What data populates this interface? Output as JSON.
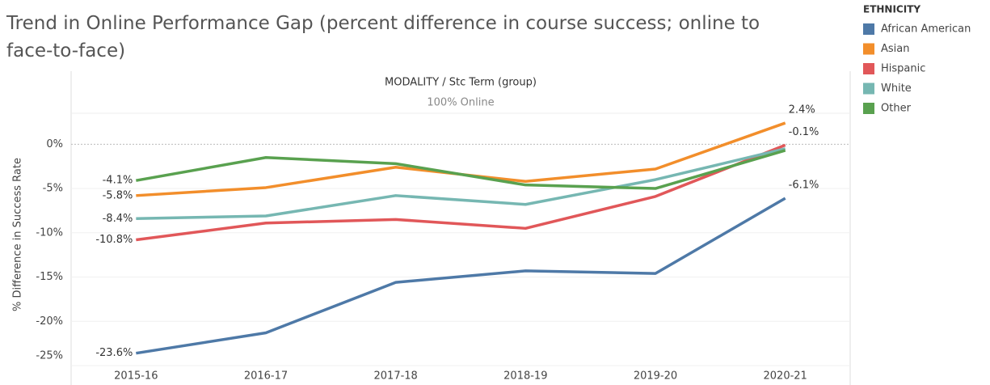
{
  "chart_data": {
    "type": "line",
    "title_lines": [
      "Trend in Online Performance Gap (percent difference in course success; online to",
      "face-to-face)"
    ],
    "header": "MODALITY / Stc Term (group)",
    "subheader": "100% Online",
    "ylabel": "% Difference in Success Rate",
    "legend_title": "ETHNICITY",
    "categories": [
      "2015-16",
      "2016-17",
      "2017-18",
      "2018-19",
      "2019-20",
      "2020-21"
    ],
    "series": [
      {
        "name": "African American",
        "color": "#4e79a7",
        "values": [
          -23.6,
          -21.3,
          -15.6,
          -14.3,
          -14.6,
          -6.1
        ],
        "value_labels": [
          "-23.6%",
          null,
          null,
          null,
          null,
          "-6.1%"
        ]
      },
      {
        "name": "Asian",
        "color": "#f28e2b",
        "values": [
          -5.8,
          -4.9,
          -2.6,
          -4.2,
          -2.8,
          2.4
        ],
        "value_labels": [
          "-5.8%",
          null,
          null,
          null,
          null,
          "2.4%"
        ]
      },
      {
        "name": "Hispanic",
        "color": "#e15759",
        "values": [
          -10.8,
          -8.9,
          -8.5,
          -9.5,
          -5.9,
          -0.1
        ],
        "value_labels": [
          "-10.8%",
          null,
          null,
          null,
          null,
          "-0.1%"
        ]
      },
      {
        "name": "White",
        "color": "#76b7b2",
        "values": [
          -8.4,
          -8.1,
          -5.8,
          -6.8,
          -4.0,
          -0.5
        ],
        "value_labels": [
          "-8.4%",
          null,
          null,
          null,
          null,
          null
        ]
      },
      {
        "name": "Other",
        "color": "#59a14f",
        "values": [
          -4.1,
          -1.5,
          -2.2,
          -4.6,
          -5.0,
          -0.7
        ],
        "value_labels": [
          "-4.1%",
          null,
          null,
          null,
          null,
          null
        ]
      }
    ],
    "ylim": [
      -25,
      3.5
    ],
    "yticks": [
      {
        "value": 0,
        "label": "0%"
      },
      {
        "value": -5,
        "label": "-5%"
      },
      {
        "value": -10,
        "label": "-10%"
      },
      {
        "value": -15,
        "label": "-15%"
      },
      {
        "value": -20,
        "label": "-20%"
      },
      {
        "value": -25,
        "label": "-25%"
      }
    ],
    "grid": true
  }
}
